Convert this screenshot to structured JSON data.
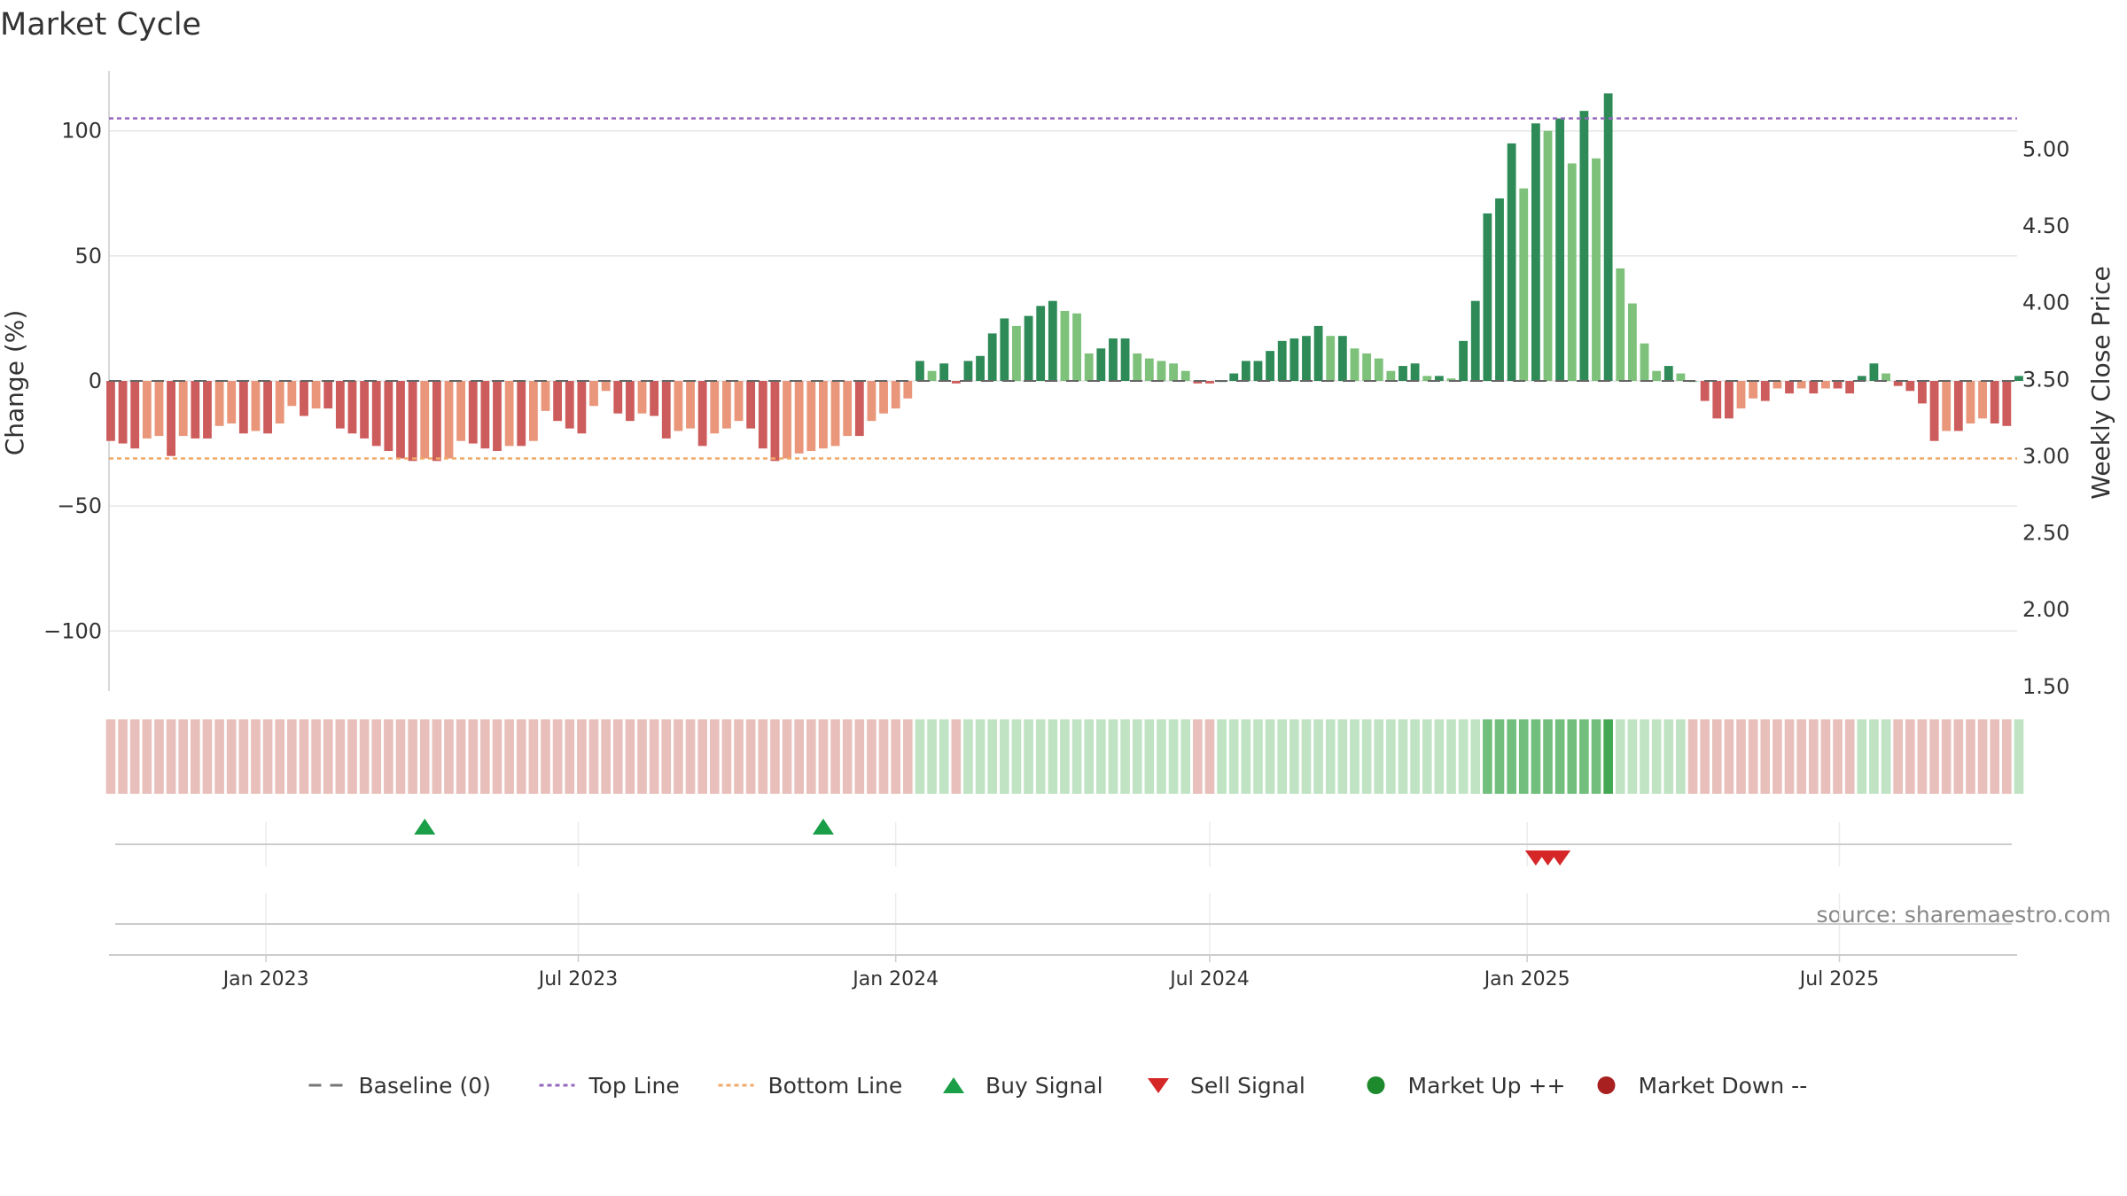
{
  "chart_data": {
    "type": "bar",
    "title": "Market Cycle",
    "ylabel_left": "Change (%)",
    "ylabel_right": "Weekly Close Price",
    "source": "source: sharemaestro.com",
    "y_left_ticks": [
      100,
      50,
      0,
      -50,
      -100
    ],
    "y_left_tick_labels": [
      "100",
      "50",
      "0",
      "−50",
      "−100"
    ],
    "y_left_range": [
      -124,
      124
    ],
    "y_right_ticks": [
      5.0,
      4.5,
      4.0,
      3.5,
      3.0,
      2.5,
      2.0,
      1.5
    ],
    "y_right_tick_labels": [
      "5.00",
      "4.50",
      "4.00",
      "3.50",
      "3.00",
      "2.50",
      "2.00",
      "1.50"
    ],
    "y_right_range": [
      1.47,
      5.51
    ],
    "top_line": 105,
    "bottom_line": -31,
    "x_ticks": [
      {
        "date": "2023-01-01",
        "label": "Jan 2023"
      },
      {
        "date": "2023-07-01",
        "label": "Jul 2023"
      },
      {
        "date": "2024-01-01",
        "label": "Jan 2024"
      },
      {
        "date": "2024-07-01",
        "label": "Jul 2024"
      },
      {
        "date": "2025-01-01",
        "label": "Jan 2025"
      },
      {
        "date": "2025-07-01",
        "label": "Jul 2025"
      }
    ],
    "x_range": [
      "2022-10-02",
      "2025-10-12"
    ],
    "bar_start_date": "2022-10-03",
    "bar_interval_days": 7,
    "values": [
      -24,
      -25,
      -27,
      -23,
      -22,
      -30,
      -22,
      -23,
      -23,
      -18,
      -17,
      -21,
      -20,
      -21,
      -17,
      -10,
      -14,
      -11,
      -11,
      -19,
      -21,
      -23,
      -26,
      -28,
      -31,
      -32,
      -31,
      -32,
      -31,
      -24,
      -25,
      -27,
      -28,
      -26,
      -26,
      -24,
      -12,
      -16,
      -19,
      -21,
      -10,
      -4,
      -13,
      -16,
      -13,
      -14,
      -23,
      -20,
      -19,
      -26,
      -21,
      -19,
      -16,
      -19,
      -27,
      -32,
      -31,
      -29,
      -28,
      -27,
      -26,
      -22,
      -22,
      -16,
      -13,
      -11,
      -7,
      8,
      4,
      7,
      -1,
      8,
      10,
      19,
      25,
      22,
      26,
      30,
      32,
      28,
      27,
      11,
      13,
      17,
      17,
      11,
      9,
      8,
      7,
      4,
      -1,
      -1,
      0,
      3,
      8,
      8,
      12,
      16,
      17,
      18,
      22,
      18,
      18,
      13,
      11,
      9,
      4,
      6,
      7,
      2,
      2,
      1,
      16,
      32,
      67,
      73,
      95,
      77,
      103,
      100,
      105,
      87,
      108,
      89,
      115,
      45,
      31,
      15,
      4,
      6,
      3,
      0,
      -8,
      -15,
      -15,
      -11,
      -7,
      -8,
      -3,
      -5,
      -3,
      -5,
      -3,
      -3,
      -5,
      2,
      7,
      3,
      -2,
      -4,
      -9,
      -24,
      -20,
      -20,
      -17,
      -15,
      -17,
      -18,
      2
    ],
    "band_values": [
      -1,
      -1,
      -1,
      -1,
      -1,
      -1,
      -1,
      -1,
      -1,
      -1,
      -1,
      -1,
      -1,
      -1,
      -1,
      -1,
      -1,
      -1,
      -1,
      -1,
      -1,
      -1,
      -1,
      -1,
      -1,
      -1,
      -1,
      -1,
      -1,
      -1,
      -1,
      -1,
      -1,
      -1,
      -1,
      -1,
      -1,
      -1,
      -1,
      -1,
      -1,
      -1,
      -1,
      -1,
      -1,
      -1,
      -1,
      -1,
      -1,
      -1,
      -1,
      -1,
      -1,
      -1,
      -1,
      -1,
      -1,
      -1,
      -1,
      -1,
      -1,
      -1,
      -1,
      -1,
      -1,
      -1,
      -1,
      1,
      1,
      1,
      -1,
      1,
      1,
      1,
      1,
      1,
      1,
      1,
      1,
      1,
      1,
      1,
      1,
      1,
      1,
      1,
      1,
      1,
      1,
      1,
      -1,
      -1,
      1,
      1,
      1,
      1,
      1,
      1,
      1,
      1,
      1,
      1,
      1,
      1,
      1,
      1,
      1,
      1,
      1,
      1,
      1,
      1,
      1,
      1,
      2,
      2,
      2,
      2,
      2,
      2,
      2,
      2,
      2,
      2,
      3,
      1,
      1,
      1,
      1,
      1,
      1,
      -1,
      -1,
      -1,
      -1,
      -1,
      -1,
      -1,
      -1,
      -1,
      -1,
      -1,
      -1,
      -1,
      -1,
      1,
      1,
      1,
      -1,
      -1,
      -1,
      -1,
      -1,
      -1,
      -1,
      -1,
      -1,
      -1,
      1
    ],
    "buy_signals": [
      "2023-04-03",
      "2023-11-20"
    ],
    "sell_signals": [
      "2025-01-06",
      "2025-01-13",
      "2025-01-20"
    ],
    "legend": [
      {
        "label": "Baseline (0)",
        "marker": "dash",
        "color": "#777777"
      },
      {
        "label": "Top Line",
        "marker": "dotted",
        "color": "#9467bd"
      },
      {
        "label": "Bottom Line",
        "marker": "dotted",
        "color": "#f0a868"
      },
      {
        "label": "Buy Signal",
        "marker": "triangle-up",
        "color": "#1a9e48"
      },
      {
        "label": "Sell Signal",
        "marker": "triangle-down",
        "color": "#d62728"
      },
      {
        "label": "Market Up ++",
        "marker": "circle",
        "color": "#1e8a2e"
      },
      {
        "label": "Market Down --",
        "marker": "circle",
        "color": "#a82020"
      }
    ],
    "grid": true,
    "legend_position": "bottom"
  }
}
